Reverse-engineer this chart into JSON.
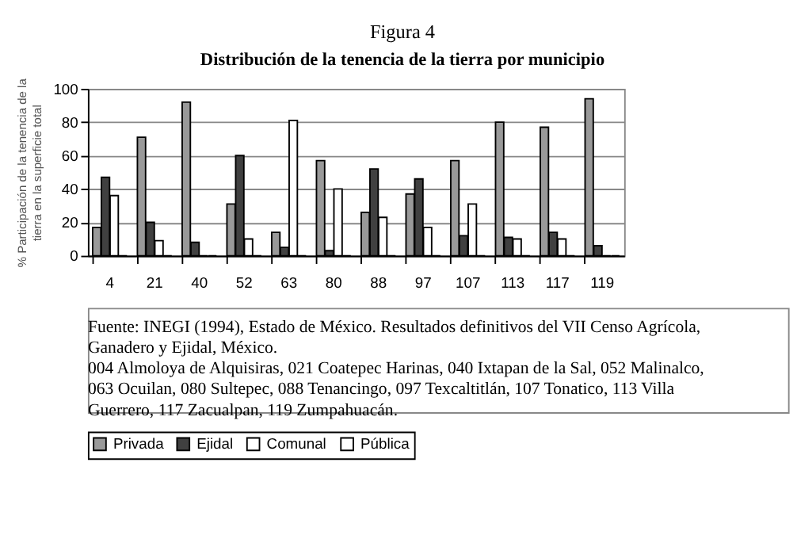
{
  "chart_data": {
    "type": "bar",
    "title": "Figura 4",
    "subtitle": "Distribución de la tenencia de la tierra por municipio",
    "ylabel": "% Participación de la tenencia de la tierra en la superficie total",
    "categories": [
      "4",
      "21",
      "40",
      "52",
      "63",
      "80",
      "88",
      "97",
      "107",
      "113",
      "117",
      "119"
    ],
    "series": [
      {
        "name": "Privada",
        "color": "#999999",
        "values": [
          17,
          71,
          92,
          31,
          14,
          57,
          26,
          37,
          57,
          80,
          77,
          94
        ]
      },
      {
        "name": "Ejidal",
        "color": "#404040",
        "values": [
          47,
          20,
          8,
          60,
          5,
          3,
          52,
          46,
          12,
          11,
          14,
          6
        ]
      },
      {
        "name": "Comunal",
        "color": "#ffffff",
        "values": [
          36,
          9,
          0,
          10,
          81,
          40,
          23,
          17,
          31,
          10,
          10,
          0
        ]
      },
      {
        "name": "Pública",
        "color": "#ffffff",
        "values": [
          0,
          0,
          0,
          0,
          0,
          0,
          0,
          0,
          0,
          0,
          0,
          0
        ]
      }
    ],
    "ylim": [
      0,
      100
    ],
    "yticks": [
      0,
      20,
      40,
      60,
      80,
      100
    ],
    "grid": "y",
    "legend": "bottom",
    "annotations": [
      "Fuente: INEGI (1994), Estado de México. Resultados definitivos del VII Censo Agrícola,",
      "Ganadero y Ejidal, México.",
      "004 Almoloya de Alquisiras, 021 Coatepec Harinas, 040 Ixtapan de la Sal, 052 Malinalco,",
      "063 Ocuilan, 080 Sultepec, 088 Tenancingo, 097 Texcaltitlán, 107 Tonatico, 113 Villa",
      "Guerrero, 117 Zacualpan, 119 Zumpahuacán."
    ]
  }
}
